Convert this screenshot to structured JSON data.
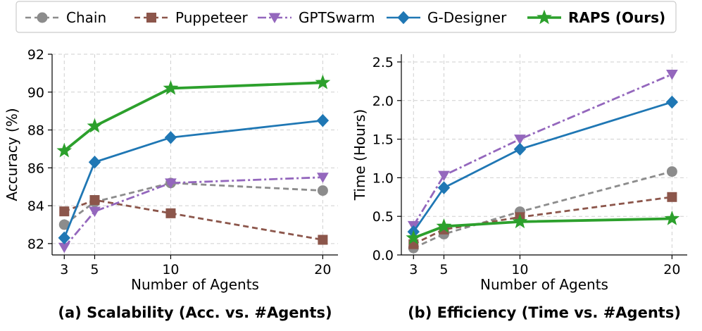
{
  "legend": [
    {
      "name": "Chain",
      "color": "#8c8c8c",
      "dash": "8 5",
      "marker": "circle",
      "bold": false
    },
    {
      "name": "Puppeteer",
      "color": "#8c564b",
      "dash": "8 5",
      "marker": "square",
      "bold": false
    },
    {
      "name": "GPTSwarm",
      "color": "#9467bd",
      "dash": "12 4 3 4",
      "marker": "triangle-down",
      "bold": false
    },
    {
      "name": "G-Designer",
      "color": "#1f77b4",
      "dash": "",
      "marker": "diamond",
      "bold": false
    },
    {
      "name": "RAPS (Ours)",
      "color": "#2ca02c",
      "dash": "",
      "marker": "star",
      "bold": true
    }
  ],
  "chart_data": [
    {
      "type": "line",
      "caption": "(a) Scalability (Acc. vs. #Agents)",
      "xlabel": "Number of Agents",
      "ylabel": "Accuracy (%)",
      "x": [
        3,
        5,
        10,
        20
      ],
      "xticks": [
        "3",
        "5",
        "10",
        "20"
      ],
      "xlim": [
        2.2,
        21
      ],
      "ylim": [
        81.4,
        92
      ],
      "yticks": [
        "82",
        "84",
        "86",
        "88",
        "90",
        "92"
      ],
      "ytick_values": [
        82,
        84,
        86,
        88,
        90,
        92
      ],
      "grid": true,
      "series": [
        {
          "name": "Chain",
          "values": [
            83.0,
            84.2,
            85.2,
            84.8
          ]
        },
        {
          "name": "Puppeteer",
          "values": [
            83.7,
            84.3,
            83.6,
            82.2
          ]
        },
        {
          "name": "GPTSwarm",
          "values": [
            81.8,
            83.7,
            85.2,
            85.5
          ]
        },
        {
          "name": "G-Designer",
          "values": [
            82.3,
            86.3,
            87.6,
            88.5
          ]
        },
        {
          "name": "RAPS (Ours)",
          "values": [
            86.9,
            88.2,
            90.2,
            90.5
          ]
        }
      ]
    },
    {
      "type": "line",
      "caption": "(b) Efficiency (Time vs. #Agents)",
      "xlabel": "Number of Agents",
      "ylabel": "Time (Hours)",
      "x": [
        3,
        5,
        10,
        20
      ],
      "xticks": [
        "3",
        "5",
        "10",
        "20"
      ],
      "xlim": [
        2.2,
        21
      ],
      "ylim": [
        0,
        2.6
      ],
      "yticks": [
        "0.0",
        "0.5",
        "1.0",
        "1.5",
        "2.0",
        "2.5"
      ],
      "ytick_values": [
        0,
        0.5,
        1.0,
        1.5,
        2.0,
        2.5
      ],
      "grid": true,
      "series": [
        {
          "name": "Chain",
          "values": [
            0.09,
            0.27,
            0.56,
            1.08
          ]
        },
        {
          "name": "Puppeteer",
          "values": [
            0.14,
            0.33,
            0.49,
            0.75
          ]
        },
        {
          "name": "GPTSwarm",
          "values": [
            0.38,
            1.03,
            1.5,
            2.34
          ]
        },
        {
          "name": "G-Designer",
          "values": [
            0.3,
            0.87,
            1.37,
            1.98
          ]
        },
        {
          "name": "RAPS (Ours)",
          "values": [
            0.22,
            0.37,
            0.43,
            0.47
          ]
        }
      ]
    }
  ]
}
